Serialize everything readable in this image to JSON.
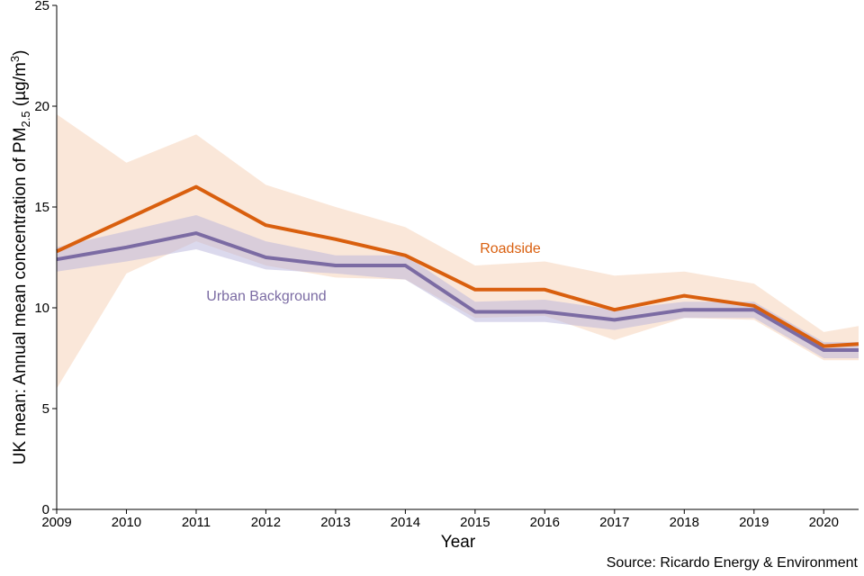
{
  "chart_data": {
    "type": "line",
    "xlabel": "Year",
    "ylabel_main": "UK mean: Annual mean concentration of PM",
    "ylabel_sub": "2.5",
    "ylabel_unit_open": " (µg/m",
    "ylabel_unit_sup": "3",
    "ylabel_unit_close": ")",
    "source": "Source: Ricardo Energy & Environment",
    "xlim": [
      2009,
      2020.5
    ],
    "ylim": [
      0,
      25
    ],
    "x_ticks": [
      2009,
      2010,
      2011,
      2012,
      2013,
      2014,
      2015,
      2016,
      2017,
      2018,
      2019,
      2020
    ],
    "y_ticks": [
      0,
      5,
      10,
      15,
      20,
      25
    ],
    "grid": false,
    "x": [
      2009,
      2010,
      2011,
      2012,
      2013,
      2014,
      2015,
      2016,
      2017,
      2018,
      2019,
      2020,
      2020.5
    ],
    "series": [
      {
        "name": "Roadside",
        "color": "#d95f0e",
        "band_color": "#f9e3d2",
        "values": [
          12.8,
          14.4,
          16.0,
          14.1,
          13.4,
          12.6,
          10.9,
          10.9,
          9.9,
          10.6,
          10.1,
          8.1,
          8.2
        ],
        "lower": [
          6.0,
          11.7,
          13.3,
          12.1,
          11.5,
          11.4,
          9.5,
          9.6,
          8.4,
          9.5,
          9.4,
          7.4,
          7.4
        ],
        "upper": [
          19.6,
          17.2,
          18.6,
          16.1,
          15.0,
          14.0,
          12.1,
          12.3,
          11.6,
          11.8,
          11.2,
          8.8,
          9.1
        ]
      },
      {
        "name": "Urban Background",
        "color": "#7b6ba3",
        "band_color": "#b8b3dc",
        "values": [
          12.4,
          13.0,
          13.7,
          12.5,
          12.1,
          12.1,
          9.8,
          9.8,
          9.4,
          9.9,
          9.9,
          7.9,
          7.9
        ],
        "lower": [
          11.8,
          12.3,
          12.9,
          11.9,
          11.7,
          11.4,
          9.3,
          9.3,
          8.9,
          9.5,
          9.5,
          7.5,
          7.5
        ],
        "upper": [
          13.0,
          13.8,
          14.6,
          13.3,
          12.6,
          12.6,
          10.3,
          10.4,
          9.9,
          10.3,
          10.3,
          8.3,
          8.3
        ]
      }
    ]
  }
}
